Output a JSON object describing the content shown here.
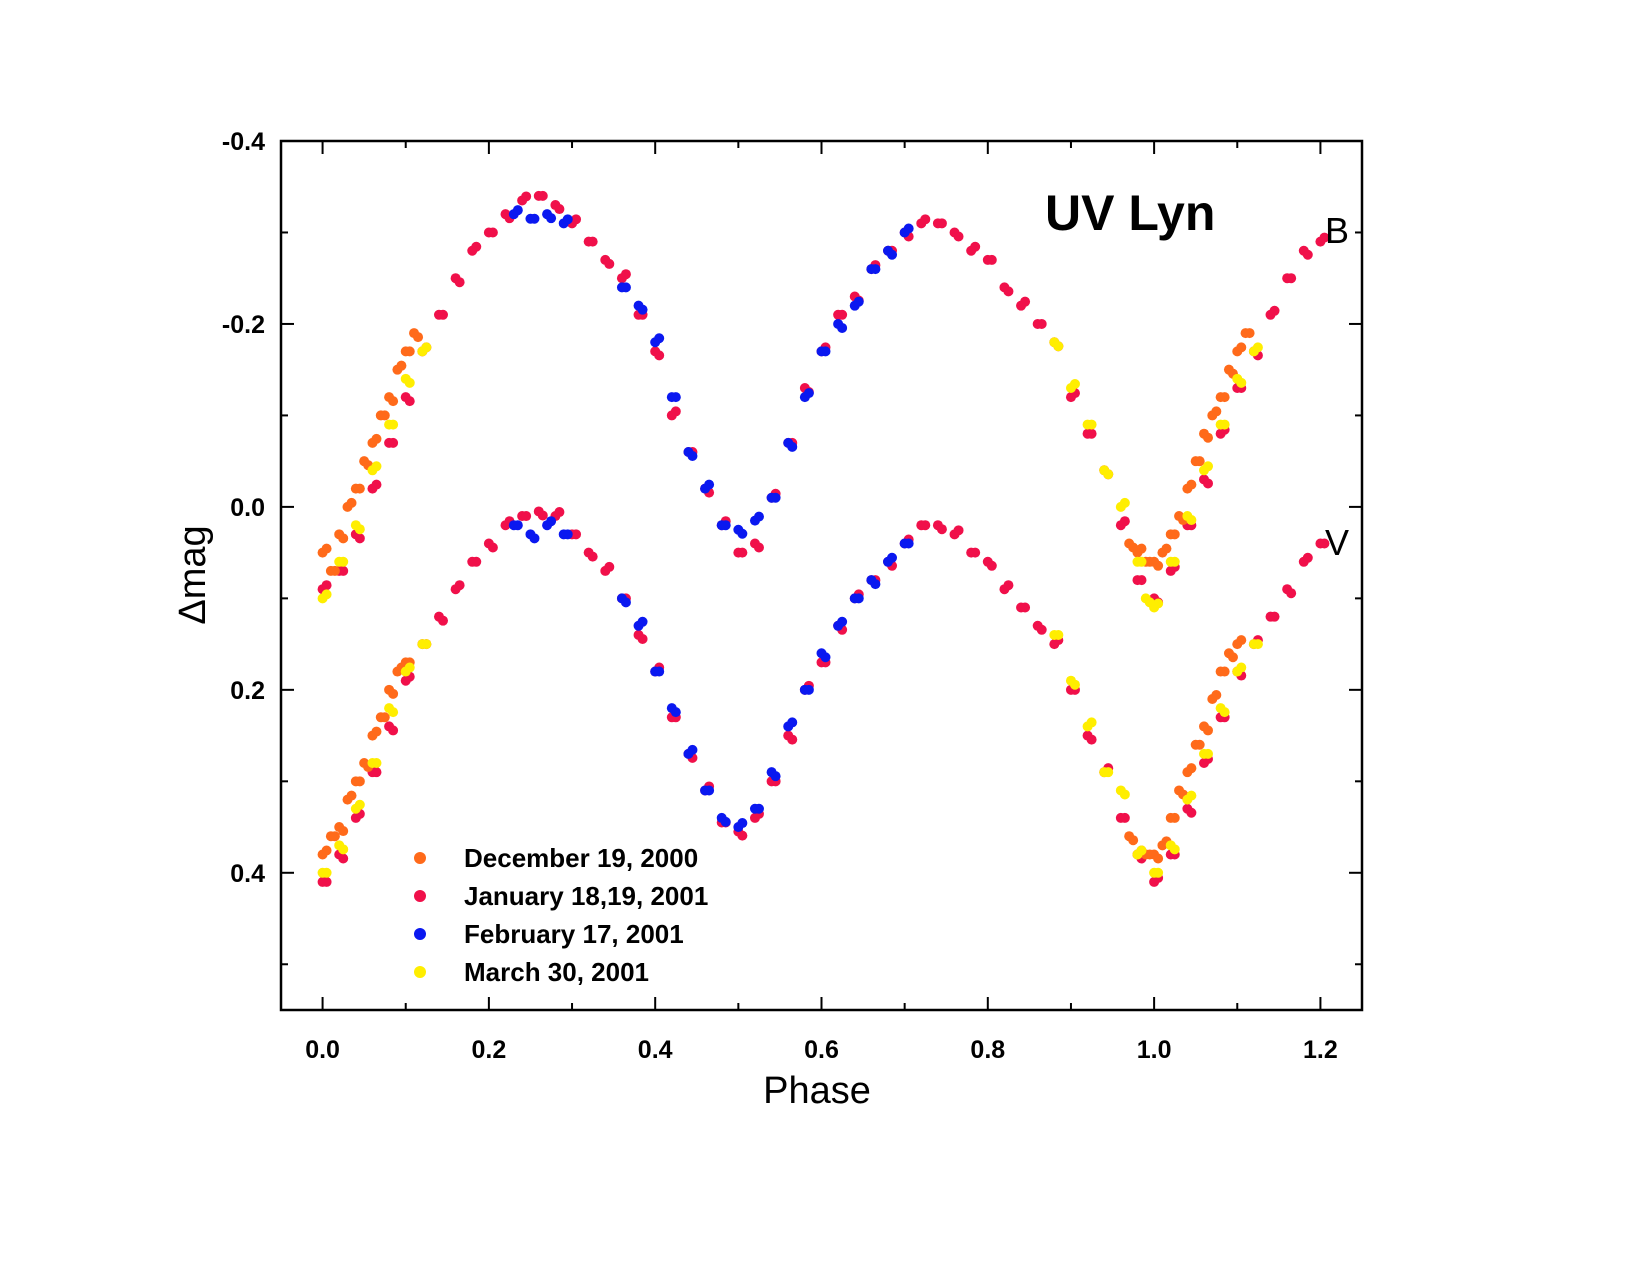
{
  "chart_data": {
    "type": "scatter",
    "title": "UV Lyn",
    "xlabel": "Phase",
    "ylabel": "Δmag",
    "xlim": [
      -0.05,
      1.25
    ],
    "ylim": [
      -0.4,
      0.55
    ],
    "y_inverted": true,
    "xticks": [
      "0.0",
      "0.2",
      "0.4",
      "0.6",
      "0.8",
      "1.0",
      "1.2"
    ],
    "xtick_values": [
      0,
      0.2,
      0.4,
      0.6,
      0.8,
      1.0,
      1.2
    ],
    "yticks": [
      "-0.4",
      "-0.2",
      "0.0",
      "0.2",
      "0.4"
    ],
    "ytick_values": [
      -0.4,
      -0.2,
      0,
      0.2,
      0.4
    ],
    "band_labels": [
      {
        "text": "B",
        "x": 1.2,
        "y": -0.3
      },
      {
        "text": "V",
        "x": 1.2,
        "y": 0.04
      }
    ],
    "legend_placement": "bottom-left",
    "series": [
      {
        "name": "December 19, 2000",
        "color": "#ff6a1a",
        "points": [
          [
            0.0,
            0.05
          ],
          [
            0.01,
            0.07
          ],
          [
            0.02,
            0.03
          ],
          [
            0.03,
            0.0
          ],
          [
            0.04,
            -0.02
          ],
          [
            0.05,
            -0.05
          ],
          [
            0.06,
            -0.07
          ],
          [
            0.07,
            -0.1
          ],
          [
            0.08,
            -0.12
          ],
          [
            0.09,
            -0.15
          ],
          [
            0.1,
            -0.17
          ],
          [
            0.11,
            -0.19
          ],
          [
            0.0,
            0.38
          ],
          [
            0.01,
            0.36
          ],
          [
            0.02,
            0.35
          ],
          [
            0.03,
            0.32
          ],
          [
            0.04,
            0.3
          ],
          [
            0.05,
            0.28
          ],
          [
            0.06,
            0.25
          ],
          [
            0.07,
            0.23
          ],
          [
            0.08,
            0.2
          ],
          [
            0.09,
            0.18
          ],
          [
            0.1,
            0.17
          ],
          [
            0.97,
            0.04
          ],
          [
            0.98,
            0.05
          ],
          [
            0.99,
            0.06
          ],
          [
            1.0,
            0.06
          ],
          [
            1.01,
            0.05
          ],
          [
            1.02,
            0.03
          ],
          [
            1.03,
            0.01
          ],
          [
            1.04,
            -0.02
          ],
          [
            1.05,
            -0.05
          ],
          [
            1.06,
            -0.08
          ],
          [
            1.07,
            -0.1
          ],
          [
            1.08,
            -0.12
          ],
          [
            1.09,
            -0.15
          ],
          [
            1.1,
            -0.17
          ],
          [
            1.11,
            -0.19
          ],
          [
            0.97,
            0.36
          ],
          [
            0.98,
            0.38
          ],
          [
            0.99,
            0.38
          ],
          [
            1.0,
            0.38
          ],
          [
            1.01,
            0.37
          ],
          [
            1.02,
            0.34
          ],
          [
            1.03,
            0.31
          ],
          [
            1.04,
            0.29
          ],
          [
            1.05,
            0.26
          ],
          [
            1.06,
            0.24
          ],
          [
            1.07,
            0.21
          ],
          [
            1.08,
            0.18
          ],
          [
            1.09,
            0.16
          ],
          [
            1.1,
            0.15
          ]
        ]
      },
      {
        "name": "January 18,19, 2001",
        "color": "#f0104a",
        "points": [
          [
            0.0,
            0.09
          ],
          [
            0.02,
            0.07
          ],
          [
            0.04,
            0.03
          ],
          [
            0.06,
            -0.02
          ],
          [
            0.08,
            -0.07
          ],
          [
            0.1,
            -0.12
          ],
          [
            0.12,
            -0.17
          ],
          [
            0.14,
            -0.21
          ],
          [
            0.16,
            -0.25
          ],
          [
            0.18,
            -0.28
          ],
          [
            0.2,
            -0.3
          ],
          [
            0.22,
            -0.32
          ],
          [
            0.24,
            -0.335
          ],
          [
            0.26,
            -0.34
          ],
          [
            0.28,
            -0.33
          ],
          [
            0.3,
            -0.31
          ],
          [
            0.32,
            -0.29
          ],
          [
            0.34,
            -0.27
          ],
          [
            0.36,
            -0.25
          ],
          [
            0.38,
            -0.21
          ],
          [
            0.4,
            -0.17
          ],
          [
            0.42,
            -0.1
          ],
          [
            0.44,
            -0.06
          ],
          [
            0.46,
            -0.02
          ],
          [
            0.48,
            0.02
          ],
          [
            0.5,
            0.05
          ],
          [
            0.52,
            0.04
          ],
          [
            0.54,
            -0.01
          ],
          [
            0.56,
            -0.07
          ],
          [
            0.58,
            -0.13
          ],
          [
            0.6,
            -0.17
          ],
          [
            0.62,
            -0.21
          ],
          [
            0.64,
            -0.23
          ],
          [
            0.66,
            -0.26
          ],
          [
            0.68,
            -0.28
          ],
          [
            0.7,
            -0.3
          ],
          [
            0.72,
            -0.31
          ],
          [
            0.74,
            -0.31
          ],
          [
            0.76,
            -0.3
          ],
          [
            0.78,
            -0.28
          ],
          [
            0.8,
            -0.27
          ],
          [
            0.82,
            -0.24
          ],
          [
            0.84,
            -0.22
          ],
          [
            0.86,
            -0.2
          ],
          [
            0.88,
            -0.18
          ],
          [
            0.9,
            -0.12
          ],
          [
            0.92,
            -0.08
          ],
          [
            0.94,
            -0.04
          ],
          [
            0.96,
            0.02
          ],
          [
            0.98,
            0.08
          ],
          [
            1.0,
            0.1
          ],
          [
            1.02,
            0.07
          ],
          [
            1.04,
            0.02
          ],
          [
            1.06,
            -0.03
          ],
          [
            1.08,
            -0.08
          ],
          [
            1.1,
            -0.13
          ],
          [
            1.12,
            -0.17
          ],
          [
            1.14,
            -0.21
          ],
          [
            1.16,
            -0.25
          ],
          [
            1.18,
            -0.28
          ],
          [
            1.2,
            -0.29
          ],
          [
            0.0,
            0.41
          ],
          [
            0.02,
            0.38
          ],
          [
            0.04,
            0.34
          ],
          [
            0.06,
            0.29
          ],
          [
            0.08,
            0.24
          ],
          [
            0.1,
            0.19
          ],
          [
            0.12,
            0.15
          ],
          [
            0.14,
            0.12
          ],
          [
            0.16,
            0.09
          ],
          [
            0.18,
            0.06
          ],
          [
            0.2,
            0.04
          ],
          [
            0.22,
            0.02
          ],
          [
            0.24,
            0.01
          ],
          [
            0.26,
            0.005
          ],
          [
            0.28,
            0.01
          ],
          [
            0.3,
            0.03
          ],
          [
            0.32,
            0.05
          ],
          [
            0.34,
            0.07
          ],
          [
            0.36,
            0.1
          ],
          [
            0.38,
            0.14
          ],
          [
            0.4,
            0.18
          ],
          [
            0.42,
            0.23
          ],
          [
            0.44,
            0.27
          ],
          [
            0.46,
            0.31
          ],
          [
            0.48,
            0.345
          ],
          [
            0.5,
            0.355
          ],
          [
            0.52,
            0.34
          ],
          [
            0.54,
            0.3
          ],
          [
            0.56,
            0.25
          ],
          [
            0.58,
            0.2
          ],
          [
            0.6,
            0.17
          ],
          [
            0.62,
            0.13
          ],
          [
            0.64,
            0.1
          ],
          [
            0.66,
            0.08
          ],
          [
            0.68,
            0.06
          ],
          [
            0.7,
            0.04
          ],
          [
            0.72,
            0.02
          ],
          [
            0.74,
            0.02
          ],
          [
            0.76,
            0.03
          ],
          [
            0.78,
            0.05
          ],
          [
            0.8,
            0.06
          ],
          [
            0.82,
            0.09
          ],
          [
            0.84,
            0.11
          ],
          [
            0.86,
            0.13
          ],
          [
            0.88,
            0.15
          ],
          [
            0.9,
            0.2
          ],
          [
            0.92,
            0.25
          ],
          [
            0.94,
            0.29
          ],
          [
            0.96,
            0.34
          ],
          [
            0.98,
            0.38
          ],
          [
            1.0,
            0.41
          ],
          [
            1.02,
            0.38
          ],
          [
            1.04,
            0.33
          ],
          [
            1.06,
            0.28
          ],
          [
            1.08,
            0.23
          ],
          [
            1.1,
            0.18
          ],
          [
            1.12,
            0.15
          ],
          [
            1.14,
            0.12
          ],
          [
            1.16,
            0.09
          ],
          [
            1.18,
            0.06
          ],
          [
            1.2,
            0.04
          ]
        ]
      },
      {
        "name": "February 17, 2001",
        "color": "#0a18f0",
        "points": [
          [
            0.23,
            -0.32
          ],
          [
            0.25,
            -0.315
          ],
          [
            0.27,
            -0.32
          ],
          [
            0.29,
            -0.31
          ],
          [
            0.36,
            -0.24
          ],
          [
            0.38,
            -0.22
          ],
          [
            0.4,
            -0.18
          ],
          [
            0.42,
            -0.12
          ],
          [
            0.44,
            -0.06
          ],
          [
            0.46,
            -0.02
          ],
          [
            0.48,
            0.02
          ],
          [
            0.5,
            0.025
          ],
          [
            0.52,
            0.015
          ],
          [
            0.54,
            -0.01
          ],
          [
            0.56,
            -0.07
          ],
          [
            0.58,
            -0.12
          ],
          [
            0.6,
            -0.17
          ],
          [
            0.62,
            -0.2
          ],
          [
            0.64,
            -0.22
          ],
          [
            0.66,
            -0.26
          ],
          [
            0.68,
            -0.28
          ],
          [
            0.7,
            -0.3
          ],
          [
            0.23,
            0.02
          ],
          [
            0.25,
            0.03
          ],
          [
            0.27,
            0.02
          ],
          [
            0.29,
            0.03
          ],
          [
            0.36,
            0.1
          ],
          [
            0.38,
            0.13
          ],
          [
            0.4,
            0.18
          ],
          [
            0.42,
            0.22
          ],
          [
            0.44,
            0.27
          ],
          [
            0.46,
            0.31
          ],
          [
            0.48,
            0.34
          ],
          [
            0.5,
            0.35
          ],
          [
            0.52,
            0.33
          ],
          [
            0.54,
            0.29
          ],
          [
            0.56,
            0.24
          ],
          [
            0.58,
            0.2
          ],
          [
            0.6,
            0.16
          ],
          [
            0.62,
            0.13
          ],
          [
            0.64,
            0.1
          ],
          [
            0.66,
            0.08
          ],
          [
            0.68,
            0.06
          ],
          [
            0.7,
            0.04
          ]
        ]
      },
      {
        "name": "March 30, 2001",
        "color": "#ffee00",
        "points": [
          [
            0.0,
            0.1
          ],
          [
            0.02,
            0.06
          ],
          [
            0.04,
            0.02
          ],
          [
            0.06,
            -0.04
          ],
          [
            0.08,
            -0.09
          ],
          [
            0.1,
            -0.14
          ],
          [
            0.12,
            -0.17
          ],
          [
            0.0,
            0.4
          ],
          [
            0.02,
            0.37
          ],
          [
            0.04,
            0.33
          ],
          [
            0.06,
            0.28
          ],
          [
            0.08,
            0.22
          ],
          [
            0.1,
            0.18
          ],
          [
            0.12,
            0.15
          ],
          [
            0.88,
            -0.18
          ],
          [
            0.9,
            -0.13
          ],
          [
            0.92,
            -0.09
          ],
          [
            0.94,
            -0.04
          ],
          [
            0.96,
            0.0
          ],
          [
            0.98,
            0.06
          ],
          [
            0.99,
            0.1
          ],
          [
            1.0,
            0.11
          ],
          [
            1.02,
            0.06
          ],
          [
            1.04,
            0.01
          ],
          [
            1.06,
            -0.04
          ],
          [
            1.08,
            -0.09
          ],
          [
            1.1,
            -0.14
          ],
          [
            1.12,
            -0.17
          ],
          [
            0.88,
            0.14
          ],
          [
            0.9,
            0.19
          ],
          [
            0.92,
            0.24
          ],
          [
            0.94,
            0.29
          ],
          [
            0.96,
            0.31
          ],
          [
            0.98,
            0.38
          ],
          [
            1.0,
            0.4
          ],
          [
            1.02,
            0.37
          ],
          [
            1.04,
            0.32
          ],
          [
            1.06,
            0.27
          ],
          [
            1.08,
            0.22
          ],
          [
            1.1,
            0.18
          ],
          [
            1.12,
            0.15
          ]
        ]
      }
    ]
  }
}
